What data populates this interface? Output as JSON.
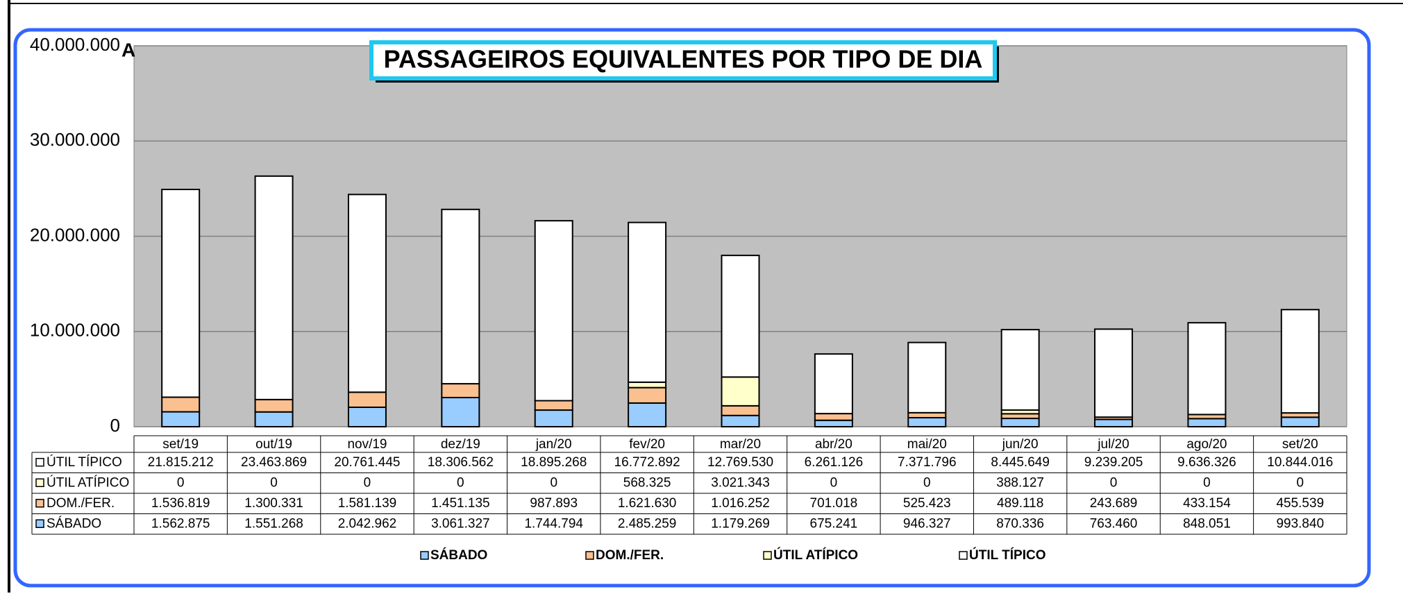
{
  "chart_data": {
    "type": "stacked-bar",
    "title": "PASSAGEIROS EQUIVALENTES POR TIPO DE DIA",
    "annotation": "A",
    "categories": [
      "set/19",
      "out/19",
      "nov/19",
      "dez/19",
      "jan/20",
      "fev/20",
      "mar/20",
      "abr/20",
      "mai/20",
      "jun/20",
      "jul/20",
      "ago/20",
      "set/20"
    ],
    "ylim": [
      0,
      40000000
    ],
    "yticks": [
      0,
      {
        "value": 10000000,
        "label": "10.000.000"
      },
      {
        "value": 20000000,
        "label": "20.000.000"
      },
      {
        "value": 30000000,
        "label": "30.000.000"
      },
      {
        "value": 40000000,
        "label": "40.000.000"
      }
    ],
    "grid": true,
    "series": [
      {
        "name": "SÁBADO",
        "color": "#99ccff",
        "values": [
          1562875,
          1551268,
          2042962,
          3061327,
          1744794,
          2485259,
          1179269,
          675241,
          946327,
          870336,
          763460,
          848051,
          993840
        ],
        "value_labels": [
          "1.562.875",
          "1.551.268",
          "2.042.962",
          "3.061.327",
          "1.744.794",
          "2.485.259",
          "1.179.269",
          "675.241",
          "946.327",
          "870.336",
          "763.460",
          "848.051",
          "993.840"
        ]
      },
      {
        "name": "DOM./FER.",
        "color": "#fac090",
        "values": [
          1536819,
          1300331,
          1581139,
          1451135,
          987893,
          1621630,
          1016252,
          701018,
          525423,
          489118,
          243689,
          433154,
          455539
        ],
        "value_labels": [
          "1.536.819",
          "1.300.331",
          "1.581.139",
          "1.451.135",
          "987.893",
          "1.621.630",
          "1.016.252",
          "701.018",
          "525.423",
          "489.118",
          "243.689",
          "433.154",
          "455.539"
        ]
      },
      {
        "name": "ÚTIL ATÍPICO",
        "color": "#ffffcc",
        "values": [
          0,
          0,
          0,
          0,
          0,
          568325,
          3021343,
          0,
          0,
          388127,
          0,
          0,
          0
        ],
        "value_labels": [
          "0",
          "0",
          "0",
          "0",
          "0",
          "568.325",
          "3.021.343",
          "0",
          "0",
          "388.127",
          "0",
          "0",
          "0"
        ]
      },
      {
        "name": "ÚTIL TÍPICO",
        "color": "#ffffff",
        "values": [
          21815212,
          23463869,
          20761445,
          18306562,
          18895268,
          16772892,
          12769530,
          6261126,
          7371796,
          8445649,
          9239205,
          9636326,
          10844016
        ],
        "value_labels": [
          "21.815.212",
          "23.463.869",
          "20.761.445",
          "18.306.562",
          "18.895.268",
          "16.772.892",
          "12.769.530",
          "6.261.126",
          "7.371.796",
          "8.445.649",
          "9.239.205",
          "9.636.326",
          "10.844.016"
        ]
      }
    ]
  }
}
